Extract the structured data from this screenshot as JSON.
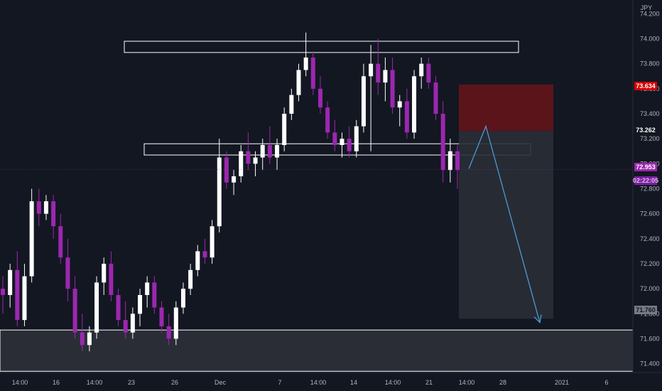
{
  "colors": {
    "background": "#131722",
    "up_candle": "#ffffff",
    "down_candle": "#9c27b0",
    "resistance_box": "#ffffff",
    "stop_zone": "#5c141b",
    "target_zone": "#2a2d36",
    "projection_arrow": "#4a9bd6",
    "current_price_tag": "#9c27b0",
    "stop_tag": "#d50000"
  },
  "chart_data": {
    "type": "candlestick",
    "currency": "JPY",
    "ylim": [
      71.33,
      74.31
    ],
    "y_ticks": [
      "74.200",
      "74.000",
      "73.800",
      "73.600",
      "73.400",
      "73.200",
      "73.000",
      "72.800",
      "72.600",
      "72.400",
      "72.200",
      "72.000",
      "71.800",
      "71.600",
      "71.400"
    ],
    "x_ticks": [
      "14:00",
      "16",
      "14:00",
      "23",
      "26",
      "Dec",
      "7",
      "14:00",
      "14",
      "14:00",
      "21",
      "14:00",
      "28",
      "2021",
      "6"
    ],
    "price_tags": {
      "current_price": "72.953",
      "countdown": "02:22:05",
      "stop_level": "73.634",
      "entry_level": "73.262",
      "target_level": "71.760"
    },
    "zones": [
      {
        "kind": "resistance",
        "top": 73.98,
        "bottom": 73.89
      },
      {
        "kind": "support",
        "top": 73.16,
        "bottom": 73.07
      },
      {
        "kind": "demand",
        "top": 71.67,
        "bottom": 71.34
      }
    ],
    "trade_setup": {
      "stop": 73.634,
      "entry": 73.262,
      "target": 71.76
    },
    "projection_path": [
      {
        "x_bar": 0,
        "y": 72.96
      },
      {
        "x_bar": 1,
        "y": 73.3
      },
      {
        "x_bar": 2,
        "y": 71.73
      }
    ],
    "candles_ohlc": [
      [
        72.0,
        72.1,
        71.8,
        71.95
      ],
      [
        71.95,
        72.2,
        71.85,
        72.15
      ],
      [
        72.15,
        72.3,
        71.7,
        71.75
      ],
      [
        71.75,
        72.2,
        71.7,
        72.1
      ],
      [
        72.1,
        72.8,
        72.05,
        72.7
      ],
      [
        72.7,
        72.8,
        72.5,
        72.6
      ],
      [
        72.6,
        72.75,
        72.55,
        72.7
      ],
      [
        72.7,
        72.75,
        72.4,
        72.5
      ],
      [
        72.5,
        72.6,
        72.2,
        72.25
      ],
      [
        72.25,
        72.4,
        71.9,
        72.0
      ],
      [
        72.0,
        72.1,
        71.6,
        71.65
      ],
      [
        71.65,
        71.8,
        71.5,
        71.55
      ],
      [
        71.55,
        71.7,
        71.5,
        71.65
      ],
      [
        71.65,
        72.1,
        71.6,
        72.05
      ],
      [
        72.05,
        72.25,
        71.95,
        72.2
      ],
      [
        72.2,
        72.3,
        71.9,
        71.95
      ],
      [
        71.95,
        72.0,
        71.7,
        71.75
      ],
      [
        71.75,
        71.9,
        71.6,
        71.65
      ],
      [
        71.65,
        71.85,
        71.6,
        71.8
      ],
      [
        71.8,
        72.0,
        71.7,
        71.95
      ],
      [
        71.95,
        72.1,
        71.85,
        72.05
      ],
      [
        72.05,
        72.1,
        71.8,
        71.85
      ],
      [
        71.85,
        71.9,
        71.65,
        71.7
      ],
      [
        71.7,
        71.8,
        71.55,
        71.6
      ],
      [
        71.6,
        71.9,
        71.55,
        71.85
      ],
      [
        71.85,
        72.05,
        71.8,
        72.0
      ],
      [
        72.0,
        72.2,
        71.95,
        72.15
      ],
      [
        72.15,
        72.35,
        72.1,
        72.3
      ],
      [
        72.3,
        72.4,
        72.2,
        72.25
      ],
      [
        72.25,
        72.55,
        72.2,
        72.5
      ],
      [
        72.5,
        73.2,
        72.45,
        73.05
      ],
      [
        73.05,
        73.1,
        72.8,
        72.85
      ],
      [
        72.85,
        72.95,
        72.75,
        72.9
      ],
      [
        72.9,
        73.15,
        72.85,
        73.1
      ],
      [
        73.1,
        73.25,
        72.95,
        73.0
      ],
      [
        73.0,
        73.1,
        72.9,
        73.05
      ],
      [
        73.05,
        73.2,
        72.95,
        73.15
      ],
      [
        73.15,
        73.3,
        73.0,
        73.05
      ],
      [
        73.05,
        73.2,
        72.95,
        73.15
      ],
      [
        73.15,
        73.45,
        73.1,
        73.4
      ],
      [
        73.4,
        73.6,
        73.35,
        73.55
      ],
      [
        73.55,
        73.8,
        73.5,
        73.75
      ],
      [
        73.75,
        74.05,
        73.7,
        73.85
      ],
      [
        73.85,
        73.9,
        73.55,
        73.6
      ],
      [
        73.6,
        73.7,
        73.4,
        73.45
      ],
      [
        73.45,
        73.5,
        73.2,
        73.25
      ],
      [
        73.25,
        73.35,
        73.1,
        73.15
      ],
      [
        73.15,
        73.25,
        73.05,
        73.2
      ],
      [
        73.2,
        73.3,
        73.05,
        73.1
      ],
      [
        73.1,
        73.35,
        73.05,
        73.3
      ],
      [
        73.3,
        73.8,
        73.25,
        73.7
      ],
      [
        73.7,
        73.95,
        73.1,
        73.8
      ],
      [
        73.8,
        74.0,
        73.55,
        73.65
      ],
      [
        73.65,
        73.85,
        73.5,
        73.75
      ],
      [
        73.75,
        73.85,
        73.4,
        73.45
      ],
      [
        73.45,
        73.55,
        73.3,
        73.5
      ],
      [
        73.5,
        73.6,
        73.2,
        73.25
      ],
      [
        73.25,
        73.75,
        73.2,
        73.7
      ],
      [
        73.7,
        73.85,
        73.6,
        73.8
      ],
      [
        73.8,
        73.85,
        73.6,
        73.65
      ],
      [
        73.65,
        73.7,
        73.35,
        73.4
      ],
      [
        73.4,
        73.5,
        72.85,
        72.95
      ],
      [
        72.95,
        73.2,
        72.85,
        73.1
      ],
      [
        73.1,
        73.15,
        72.8,
        72.95
      ]
    ]
  }
}
